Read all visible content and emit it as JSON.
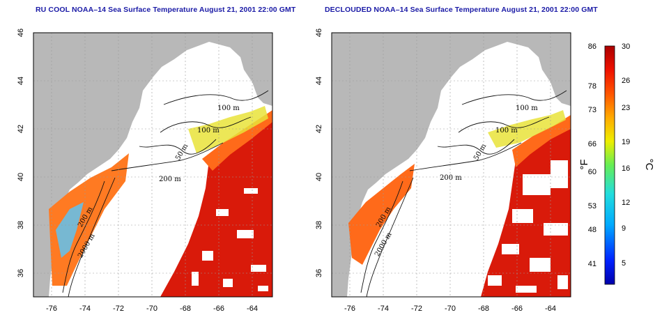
{
  "panels": [
    {
      "id": "left",
      "title": "RU COOL NOAA–14 Sea Surface Temperature August 21, 2001 22:00 GMT",
      "x_ticks": [
        "-76",
        "-74",
        "-72",
        "-70",
        "-68",
        "-66",
        "-64"
      ],
      "y_ticks": [
        "36",
        "38",
        "40",
        "42",
        "44",
        "46"
      ],
      "contour_labels": [
        "100 m",
        "100 m",
        "50 m",
        "200 m",
        "200 m",
        "2000 m"
      ]
    },
    {
      "id": "right",
      "title": "DECLOUDED NOAA–14 Sea Surface Temperature August 21, 2001 22:00 GMT",
      "x_ticks": [
        "-76",
        "-74",
        "-72",
        "-70",
        "-68",
        "-66",
        "-64"
      ],
      "y_ticks": [
        "36",
        "38",
        "40",
        "42",
        "44",
        "46"
      ],
      "contour_labels": [
        "100 m",
        "100 m",
        "50 m",
        "200 m",
        "200 m",
        "2000 m"
      ]
    }
  ],
  "map": {
    "lon_range": [
      -77,
      -63
    ],
    "lat_range": [
      35,
      46
    ],
    "land_color": "#b8b8b8",
    "cloud_color": "#ffffff"
  },
  "colorbar": {
    "fahrenheit_ticks": [
      "86",
      "78",
      "73",
      "66",
      "60",
      "53",
      "48",
      "41"
    ],
    "celsius_ticks": [
      "30",
      "26",
      "23",
      "19",
      "16",
      "12",
      "9",
      "5"
    ],
    "fahrenheit_unit": "°F",
    "celsius_unit": "°C",
    "range_celsius": [
      2,
      30
    ],
    "colors": [
      "#0000aa",
      "#0033ff",
      "#00aaff",
      "#22dddd",
      "#66ee66",
      "#eeee00",
      "#ffaa00",
      "#ff5500",
      "#ee1100",
      "#aa0000"
    ]
  }
}
